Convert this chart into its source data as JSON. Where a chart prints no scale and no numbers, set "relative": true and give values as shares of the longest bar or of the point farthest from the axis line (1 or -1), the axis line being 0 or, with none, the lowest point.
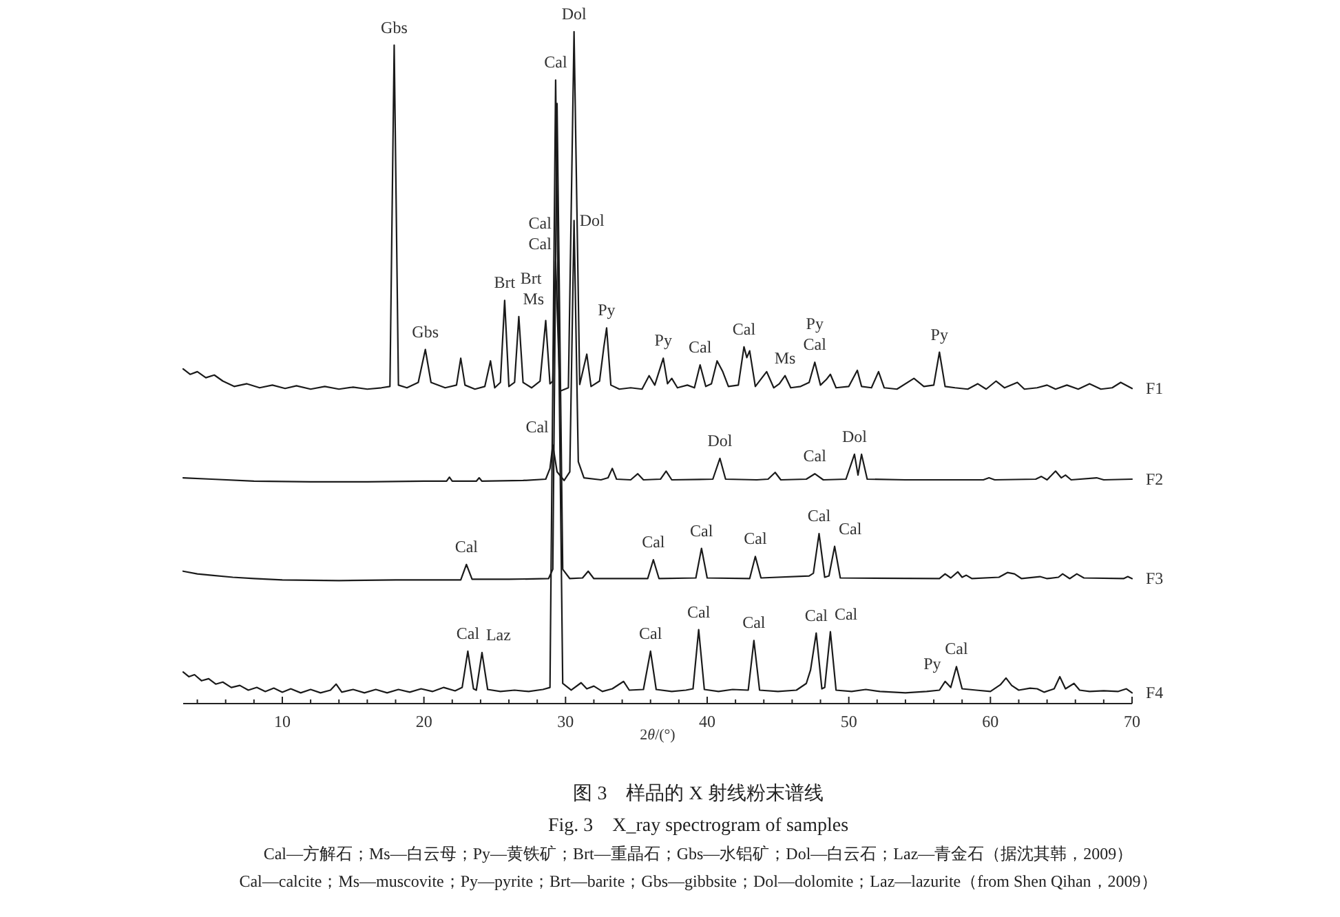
{
  "chart_data": {
    "type": "line",
    "relative": true,
    "title": "图 3　样品的 X 射线粉末谱线",
    "subtitle": "Fig. 3　X_ray spectrogram of samples",
    "xlabel": "2θ/(°)",
    "xlim": [
      3,
      70
    ],
    "xticks": [
      {
        "value": 4,
        "label": null
      },
      {
        "value": 6,
        "label": null
      },
      {
        "value": 8,
        "label": null
      },
      10,
      {
        "value": 12,
        "label": null
      },
      {
        "value": 14,
        "label": null
      },
      {
        "value": 16,
        "label": null
      },
      {
        "value": 18,
        "label": null
      },
      20,
      {
        "value": 22,
        "label": null
      },
      {
        "value": 24,
        "label": null
      },
      {
        "value": 26,
        "label": null
      },
      {
        "value": 28,
        "label": null
      },
      30,
      {
        "value": 32,
        "label": null
      },
      {
        "value": 34,
        "label": null
      },
      {
        "value": 36,
        "label": null
      },
      {
        "value": 38,
        "label": null
      },
      40,
      {
        "value": 42,
        "label": null
      },
      {
        "value": 44,
        "label": null
      },
      {
        "value": 46,
        "label": null
      },
      {
        "value": 48,
        "label": null
      },
      50,
      {
        "value": 52,
        "label": null
      },
      {
        "value": 54,
        "label": null
      },
      {
        "value": 56,
        "label": null
      },
      {
        "value": 58,
        "label": null
      },
      60,
      {
        "value": 62,
        "label": null
      },
      {
        "value": 64,
        "label": null
      },
      {
        "value": 66,
        "label": null
      },
      {
        "value": 68,
        "label": null
      },
      70
    ],
    "series": [
      {
        "name": "F1",
        "color": "#1a1a1a",
        "x": [
          3.0,
          3.5,
          4.0,
          4.6,
          5.2,
          5.8,
          6.6,
          7.5,
          8.4,
          9.3,
          10.2,
          11.0,
          12.0,
          13.0,
          14.0,
          15.0,
          16.0,
          17.0,
          17.6,
          17.9,
          18.2,
          18.8,
          19.6,
          20.1,
          20.5,
          21.5,
          22.3,
          22.6,
          22.9,
          23.6,
          24.3,
          24.7,
          25.0,
          25.4,
          25.7,
          26.0,
          26.4,
          26.7,
          27.0,
          27.6,
          28.2,
          28.6,
          28.9,
          29.1,
          29.3,
          29.6,
          30.2,
          30.6,
          31.0,
          31.5,
          31.8,
          32.4,
          32.7,
          32.9,
          33.2,
          33.8,
          34.6,
          35.4,
          35.9,
          36.3,
          36.9,
          37.2,
          37.5,
          37.9,
          38.6,
          39.1,
          39.5,
          39.9,
          40.3,
          40.7,
          41.1,
          41.5,
          42.2,
          42.6,
          42.8,
          43.0,
          43.4,
          44.2,
          44.7,
          45.1,
          45.5,
          45.9,
          46.6,
          47.2,
          47.6,
          48.0,
          48.4,
          48.7,
          49.1,
          50.0,
          50.6,
          50.9,
          51.6,
          52.1,
          52.5,
          53.4,
          54.6,
          55.3,
          56.0,
          56.4,
          56.8,
          57.5,
          58.4,
          59.1,
          59.7,
          60.4,
          61.0,
          61.9,
          62.4,
          63.3,
          64.0,
          64.6,
          65.4,
          66.2,
          67.0,
          67.8,
          68.6,
          69.2,
          70.0
        ],
        "values": [
          0.498,
          0.49,
          0.494,
          0.485,
          0.489,
          0.48,
          0.472,
          0.476,
          0.47,
          0.474,
          0.469,
          0.473,
          0.468,
          0.472,
          0.468,
          0.471,
          0.468,
          0.47,
          0.472,
          0.98,
          0.474,
          0.47,
          0.478,
          0.527,
          0.478,
          0.47,
          0.474,
          0.514,
          0.474,
          0.468,
          0.472,
          0.51,
          0.47,
          0.478,
          0.6,
          0.472,
          0.478,
          0.576,
          0.478,
          0.47,
          0.48,
          0.57,
          0.476,
          0.48,
          0.658,
          0.465,
          0.47,
          1.0,
          0.475,
          0.52,
          0.472,
          0.48,
          0.53,
          0.559,
          0.474,
          0.468,
          0.47,
          0.468,
          0.488,
          0.474,
          0.514,
          0.476,
          0.484,
          0.47,
          0.474,
          0.47,
          0.504,
          0.472,
          0.476,
          0.51,
          0.494,
          0.472,
          0.474,
          0.531,
          0.515,
          0.525,
          0.472,
          0.494,
          0.47,
          0.476,
          0.488,
          0.47,
          0.472,
          0.478,
          0.508,
          0.474,
          0.482,
          0.49,
          0.47,
          0.472,
          0.496,
          0.472,
          0.47,
          0.494,
          0.47,
          0.468,
          0.484,
          0.472,
          0.474,
          0.523,
          0.472,
          0.47,
          0.468,
          0.476,
          0.468,
          0.48,
          0.47,
          0.478,
          0.468,
          0.47,
          0.474,
          0.468,
          0.474,
          0.468,
          0.476,
          0.468,
          0.47,
          0.478,
          0.469
        ]
      },
      {
        "name": "F2",
        "color": "#1a1a1a",
        "x": [
          3.0,
          5.0,
          8.0,
          12.0,
          16.0,
          20.0,
          21.6,
          21.8,
          22.0,
          23.7,
          23.9,
          24.1,
          27.0,
          28.6,
          28.9,
          29.1,
          29.4,
          29.9,
          30.3,
          30.6,
          30.9,
          31.3,
          32.5,
          33.0,
          33.3,
          33.6,
          34.6,
          35.1,
          35.5,
          36.7,
          37.1,
          37.5,
          40.4,
          40.9,
          41.3,
          43.5,
          44.3,
          44.8,
          45.2,
          47.0,
          47.6,
          48.2,
          49.8,
          50.4,
          50.65,
          50.9,
          51.3,
          54.0,
          59.5,
          59.9,
          60.3,
          63.2,
          63.6,
          64.0,
          64.6,
          65.0,
          65.3,
          65.7,
          67.5,
          68.0,
          70.0
        ],
        "values": [
          0.336,
          0.334,
          0.331,
          0.33,
          0.33,
          0.331,
          0.331,
          0.337,
          0.331,
          0.331,
          0.336,
          0.331,
          0.332,
          0.334,
          0.35,
          0.385,
          0.345,
          0.332,
          0.345,
          0.719,
          0.36,
          0.336,
          0.333,
          0.336,
          0.35,
          0.334,
          0.333,
          0.342,
          0.333,
          0.334,
          0.346,
          0.333,
          0.334,
          0.365,
          0.334,
          0.333,
          0.334,
          0.344,
          0.333,
          0.334,
          0.342,
          0.333,
          0.334,
          0.371,
          0.34,
          0.371,
          0.334,
          0.333,
          0.333,
          0.336,
          0.333,
          0.334,
          0.338,
          0.333,
          0.346,
          0.336,
          0.34,
          0.333,
          0.336,
          0.333,
          0.334
        ]
      },
      {
        "name": "F3",
        "color": "#1a1a1a",
        "x": [
          3.0,
          4.0,
          5.0,
          6.5,
          8.0,
          10.0,
          14.0,
          18.0,
          22.6,
          23.0,
          23.4,
          26.0,
          28.8,
          29.1,
          29.4,
          29.8,
          30.3,
          31.2,
          31.6,
          32.0,
          35.8,
          36.2,
          36.6,
          39.2,
          39.6,
          40.0,
          43.0,
          43.4,
          43.8,
          47.2,
          47.5,
          47.9,
          48.3,
          48.6,
          49.0,
          49.4,
          56.4,
          56.8,
          57.2,
          57.7,
          58.0,
          58.3,
          58.7,
          60.6,
          61.2,
          61.7,
          62.2,
          63.5,
          64.0,
          64.8,
          65.1,
          65.6,
          66.1,
          66.6,
          69.4,
          69.7,
          70.0
        ],
        "values": [
          0.197,
          0.193,
          0.191,
          0.188,
          0.186,
          0.184,
          0.183,
          0.184,
          0.184,
          0.207,
          0.185,
          0.185,
          0.186,
          0.2,
          0.893,
          0.2,
          0.186,
          0.187,
          0.197,
          0.186,
          0.186,
          0.214,
          0.186,
          0.187,
          0.231,
          0.187,
          0.186,
          0.219,
          0.187,
          0.19,
          0.194,
          0.253,
          0.188,
          0.19,
          0.234,
          0.187,
          0.186,
          0.193,
          0.187,
          0.196,
          0.188,
          0.191,
          0.186,
          0.188,
          0.195,
          0.193,
          0.186,
          0.189,
          0.186,
          0.188,
          0.193,
          0.186,
          0.193,
          0.187,
          0.186,
          0.189,
          0.186
        ]
      },
      {
        "name": "F4",
        "color": "#1a1a1a",
        "x": [
          3.0,
          3.4,
          3.8,
          4.3,
          4.8,
          5.3,
          5.8,
          6.4,
          7.0,
          7.6,
          8.2,
          8.8,
          9.4,
          10.0,
          10.6,
          11.3,
          12.0,
          12.7,
          13.4,
          13.8,
          14.2,
          15.0,
          15.8,
          16.6,
          17.4,
          18.2,
          19.0,
          19.8,
          20.6,
          21.4,
          22.2,
          22.7,
          23.1,
          23.5,
          23.7,
          24.1,
          24.5,
          25.4,
          26.4,
          27.4,
          28.4,
          28.9,
          29.3,
          29.8,
          30.4,
          31.1,
          31.5,
          32.0,
          32.6,
          33.3,
          34.1,
          34.5,
          35.5,
          36.0,
          36.4,
          37.5,
          38.5,
          39.0,
          39.4,
          39.8,
          40.8,
          41.8,
          42.9,
          43.3,
          43.7,
          45.0,
          46.3,
          47.0,
          47.3,
          47.7,
          48.1,
          48.3,
          48.7,
          49.1,
          50.2,
          51.2,
          52.2,
          54.0,
          55.5,
          56.4,
          56.8,
          57.2,
          57.6,
          58.0,
          59.0,
          60.0,
          60.7,
          61.1,
          61.5,
          62.0,
          62.8,
          63.3,
          63.8,
          64.5,
          64.9,
          65.3,
          65.9,
          66.3,
          67.0,
          68.0,
          69.0,
          69.6,
          70.0
        ],
        "values": [
          0.047,
          0.04,
          0.043,
          0.034,
          0.037,
          0.029,
          0.032,
          0.024,
          0.027,
          0.02,
          0.024,
          0.018,
          0.023,
          0.017,
          0.022,
          0.016,
          0.021,
          0.016,
          0.02,
          0.029,
          0.017,
          0.021,
          0.016,
          0.021,
          0.016,
          0.021,
          0.017,
          0.022,
          0.018,
          0.024,
          0.019,
          0.024,
          0.078,
          0.022,
          0.02,
          0.076,
          0.021,
          0.018,
          0.02,
          0.018,
          0.021,
          0.024,
          0.928,
          0.03,
          0.02,
          0.031,
          0.022,
          0.026,
          0.018,
          0.022,
          0.033,
          0.02,
          0.021,
          0.078,
          0.021,
          0.018,
          0.02,
          0.022,
          0.11,
          0.021,
          0.018,
          0.021,
          0.02,
          0.094,
          0.02,
          0.018,
          0.02,
          0.03,
          0.05,
          0.105,
          0.022,
          0.024,
          0.107,
          0.02,
          0.018,
          0.021,
          0.018,
          0.016,
          0.018,
          0.02,
          0.033,
          0.024,
          0.055,
          0.022,
          0.02,
          0.018,
          0.028,
          0.038,
          0.027,
          0.02,
          0.023,
          0.022,
          0.017,
          0.022,
          0.04,
          0.022,
          0.03,
          0.02,
          0.018,
          0.019,
          0.018,
          0.022,
          0.016
        ]
      }
    ],
    "annotations": [
      {
        "text": "Gbs",
        "x": 17.9,
        "y": 0.98
      },
      {
        "text": "Dol",
        "x": 30.6,
        "y": 1.0
      },
      {
        "text": "Cal",
        "x": 29.3,
        "y": 0.928
      },
      {
        "text": "Dol",
        "x": 30.6,
        "y": 0.719
      },
      {
        "text": "Cal",
        "x": 29.3,
        "y": 0.658
      },
      {
        "text": "Cal",
        "x": 29.3,
        "y": 0.658
      },
      {
        "text": "Brt",
        "x": 25.7,
        "y": 0.6
      },
      {
        "text": "Ms",
        "x": 26.7,
        "y": 0.576
      },
      {
        "text": "Brt",
        "x": 28.6,
        "y": 0.57
      },
      {
        "text": "Py",
        "x": 32.9,
        "y": 0.559
      },
      {
        "text": "Gbs",
        "x": 20.1,
        "y": 0.527
      },
      {
        "text": "Py",
        "x": 36.9,
        "y": 0.514
      },
      {
        "text": "Cal",
        "x": 39.5,
        "y": 0.504
      },
      {
        "text": "Cal",
        "x": 42.6,
        "y": 0.531
      },
      {
        "text": "Ms",
        "x": 45.5,
        "y": 0.488
      },
      {
        "text": "Cal",
        "x": 47.6,
        "y": 0.508
      },
      {
        "text": "Py",
        "x": 47.6,
        "y": 0.508
      },
      {
        "text": "Py",
        "x": 56.4,
        "y": 0.523
      },
      {
        "text": "Cal",
        "x": 29.1,
        "y": 0.385
      },
      {
        "text": "Dol",
        "x": 40.9,
        "y": 0.365
      },
      {
        "text": "Cal",
        "x": 47.6,
        "y": 0.342
      },
      {
        "text": "Dol",
        "x": 50.4,
        "y": 0.371
      },
      {
        "text": "Cal",
        "x": 23.0,
        "y": 0.207
      },
      {
        "text": "Cal",
        "x": 36.2,
        "y": 0.214
      },
      {
        "text": "Cal",
        "x": 39.6,
        "y": 0.231
      },
      {
        "text": "Cal",
        "x": 43.4,
        "y": 0.219
      },
      {
        "text": "Cal",
        "x": 47.9,
        "y": 0.253
      },
      {
        "text": "Cal",
        "x": 49.0,
        "y": 0.234
      },
      {
        "text": "Cal",
        "x": 23.1,
        "y": 0.078
      },
      {
        "text": "Laz",
        "x": 24.1,
        "y": 0.076
      },
      {
        "text": "Cal",
        "x": 36.0,
        "y": 0.078
      },
      {
        "text": "Cal",
        "x": 39.4,
        "y": 0.11
      },
      {
        "text": "Cal",
        "x": 43.3,
        "y": 0.094
      },
      {
        "text": "Cal",
        "x": 47.7,
        "y": 0.105
      },
      {
        "text": "Cal",
        "x": 48.7,
        "y": 0.107
      },
      {
        "text": "Py",
        "x": 56.8,
        "y": 0.033
      },
      {
        "text": "Cal",
        "x": 57.6,
        "y": 0.055
      },
      "Cal—方解石；Ms—白云母；Py—黄铁矿；Brt—重晶石；Gbs—水铝矿；Dol—白云石；Laz—青金石（据沈其韩，2009）",
      "Cal—calcite；Ms—muscovite；Py—pyrite；Brt—barite；Gbs—gibbsite；Dol—dolomite；Laz—lazurite（from Shen Qihan，2009）"
    ]
  }
}
